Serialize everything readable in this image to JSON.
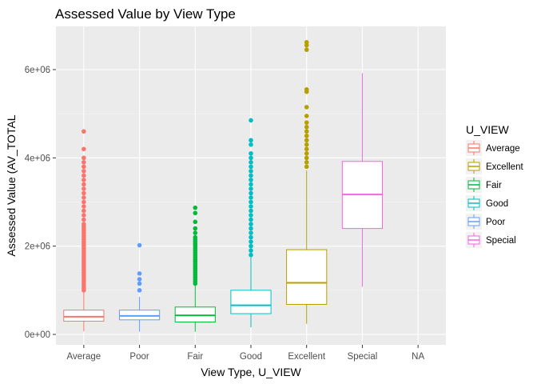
{
  "chart_data": {
    "type": "boxplot",
    "title": "Assessed Value by View Type",
    "xlabel": "View Type, U_VIEW",
    "ylabel": "Assessed Value (AV_TOTAL",
    "categories": [
      "Average",
      "Poor",
      "Fair",
      "Good",
      "Excellent",
      "Special",
      "NA"
    ],
    "ylim": [
      -200000,
      6800000
    ],
    "yticks": [
      0,
      2000000,
      4000000,
      6000000
    ],
    "ytick_labels": [
      "0e+00",
      "2e+06",
      "4e+06",
      "6e+06"
    ],
    "grid": true,
    "legend": {
      "title": "U_VIEW",
      "position": "right",
      "entries": [
        "Average",
        "Excellent",
        "Fair",
        "Good",
        "Poor",
        "Special"
      ]
    },
    "series": [
      {
        "name": "Average",
        "color": "#F8766D",
        "q1": 300000,
        "median": 400000,
        "q3": 550000,
        "whisker_low": 70000,
        "whisker_high": 950000,
        "outliers": [
          1000000,
          1050000,
          1100000,
          1150000,
          1200000,
          1250000,
          1300000,
          1350000,
          1400000,
          1450000,
          1500000,
          1550000,
          1600000,
          1650000,
          1700000,
          1750000,
          1800000,
          1850000,
          1900000,
          1950000,
          2000000,
          2050000,
          2100000,
          2150000,
          2200000,
          2250000,
          2300000,
          2350000,
          2400000,
          2450000,
          2500000,
          2600000,
          2700000,
          2800000,
          2900000,
          3000000,
          3100000,
          3200000,
          3300000,
          3400000,
          3500000,
          3600000,
          3700000,
          3800000,
          3900000,
          4000000,
          4200000,
          4600000
        ]
      },
      {
        "name": "Poor",
        "color": "#619CFF",
        "q1": 330000,
        "median": 420000,
        "q3": 550000,
        "whisker_low": 60000,
        "whisker_high": 850000,
        "outliers": [
          1000000,
          1150000,
          1250000,
          1380000,
          2020000
        ]
      },
      {
        "name": "Fair",
        "color": "#00BA38",
        "q1": 280000,
        "median": 430000,
        "q3": 620000,
        "whisker_low": 60000,
        "whisker_high": 1100000,
        "outliers": [
          1150000,
          1200000,
          1250000,
          1300000,
          1350000,
          1400000,
          1450000,
          1500000,
          1550000,
          1600000,
          1650000,
          1700000,
          1750000,
          1800000,
          1850000,
          1900000,
          1950000,
          2000000,
          2050000,
          2100000,
          2150000,
          2200000,
          2300000,
          2400000,
          2550000,
          2750000,
          2870000
        ]
      },
      {
        "name": "Good",
        "color": "#00BFC4",
        "q1": 470000,
        "median": 660000,
        "q3": 1000000,
        "whisker_low": 160000,
        "whisker_high": 1750000,
        "outliers": [
          1800000,
          1900000,
          2000000,
          2100000,
          2200000,
          2300000,
          2400000,
          2500000,
          2600000,
          2700000,
          2800000,
          2900000,
          3000000,
          3100000,
          3200000,
          3300000,
          3400000,
          3500000,
          3600000,
          3700000,
          3800000,
          3900000,
          4000000,
          4100000,
          4300000,
          4400000,
          4850000
        ]
      },
      {
        "name": "Excellent",
        "color": "#B79F00",
        "q1": 680000,
        "median": 1170000,
        "q3": 1920000,
        "whisker_low": 240000,
        "whisker_high": 3720000,
        "outliers": [
          3800000,
          3900000,
          4000000,
          4100000,
          4200000,
          4300000,
          4400000,
          4500000,
          4600000,
          4700000,
          4800000,
          4950000,
          5150000,
          5500000,
          5550000,
          6450000,
          6550000,
          6620000
        ]
      },
      {
        "name": "Special",
        "color": "#F564E3",
        "q1": 2400000,
        "median": 3170000,
        "q3": 3920000,
        "whisker_low": 1080000,
        "whisker_high": 5920000,
        "outliers": []
      }
    ]
  }
}
